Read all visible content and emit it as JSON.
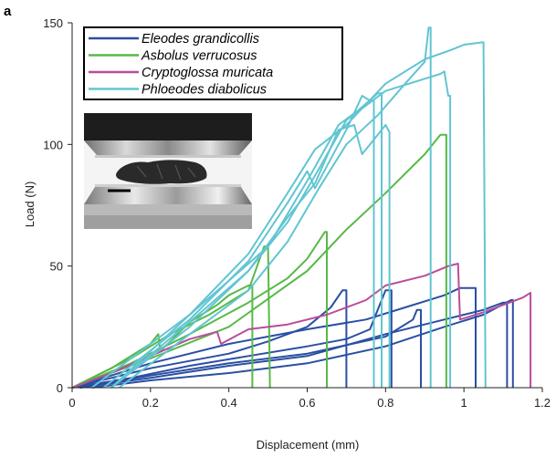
{
  "chart_data": {
    "type": "line",
    "panel_label": "a",
    "xlabel": "Displacement (mm)",
    "ylabel": "Load (N)",
    "xlim": [
      0,
      1.2
    ],
    "ylim": [
      0,
      150
    ],
    "xticks": [
      "0",
      "0.2",
      "0.4",
      "0.6",
      "0.8",
      "1",
      "1.2"
    ],
    "yticks": [
      "0",
      "50",
      "100",
      "150"
    ],
    "legend_position": "top-left",
    "grid": false,
    "inset_image": "beetle specimen compressed between two steel platens",
    "series": [
      {
        "name": "Eleodes grandicollis",
        "color": "#2a4fa3",
        "curves": [
          [
            [
              0,
              0
            ],
            [
              0.1,
              4
            ],
            [
              0.2,
              8
            ],
            [
              0.3,
              11
            ],
            [
              0.4,
              14
            ],
            [
              0.5,
              19
            ],
            [
              0.6,
              25
            ],
            [
              0.66,
              33
            ],
            [
              0.69,
              40
            ],
            [
              0.7,
              40
            ],
            [
              0.7,
              0
            ]
          ],
          [
            [
              0,
              0
            ],
            [
              0.15,
              4
            ],
            [
              0.3,
              9
            ],
            [
              0.45,
              13
            ],
            [
              0.6,
              17
            ],
            [
              0.7,
              20
            ],
            [
              0.76,
              24
            ],
            [
              0.8,
              40
            ],
            [
              0.815,
              40
            ],
            [
              0.815,
              0
            ]
          ],
          [
            [
              0.02,
              0
            ],
            [
              0.2,
              5
            ],
            [
              0.4,
              10
            ],
            [
              0.6,
              14
            ],
            [
              0.8,
              21
            ],
            [
              0.87,
              28
            ],
            [
              0.88,
              32
            ],
            [
              0.89,
              32
            ],
            [
              0.89,
              0
            ]
          ],
          [
            [
              0,
              0
            ],
            [
              0.2,
              10
            ],
            [
              0.4,
              18
            ],
            [
              0.6,
              24
            ],
            [
              0.75,
              28
            ],
            [
              0.85,
              33
            ],
            [
              0.95,
              38
            ],
            [
              0.99,
              41
            ],
            [
              1.03,
              41
            ],
            [
              1.03,
              0
            ]
          ],
          [
            [
              0.02,
              0
            ],
            [
              0.2,
              4
            ],
            [
              0.4,
              9
            ],
            [
              0.6,
              13
            ],
            [
              0.8,
              22
            ],
            [
              0.95,
              28
            ],
            [
              1.05,
              32
            ],
            [
              1.1,
              35
            ],
            [
              1.11,
              35
            ],
            [
              1.11,
              0
            ]
          ],
          [
            [
              0.05,
              0
            ],
            [
              0.2,
              3
            ],
            [
              0.4,
              6
            ],
            [
              0.6,
              10
            ],
            [
              0.8,
              17
            ],
            [
              0.95,
              25
            ],
            [
              1.05,
              30
            ],
            [
              1.12,
              36
            ],
            [
              1.125,
              36
            ],
            [
              1.125,
              0
            ]
          ]
        ]
      },
      {
        "name": "Asbolus verrucosus",
        "color": "#58b948",
        "curves": [
          [
            [
              0,
              0
            ],
            [
              0.1,
              8
            ],
            [
              0.2,
              18
            ],
            [
              0.22,
              22
            ],
            [
              0.225,
              15
            ],
            [
              0.3,
              27
            ],
            [
              0.36,
              33
            ],
            [
              0.37,
              34
            ],
            [
              0.4,
              38
            ],
            [
              0.45,
              42
            ],
            [
              0.46,
              42
            ],
            [
              0.46,
              0
            ]
          ],
          [
            [
              0,
              0
            ],
            [
              0.15,
              12
            ],
            [
              0.25,
              22
            ],
            [
              0.35,
              30
            ],
            [
              0.45,
              40
            ],
            [
              0.49,
              58
            ],
            [
              0.5,
              58
            ],
            [
              0.505,
              0
            ]
          ],
          [
            [
              0,
              0
            ],
            [
              0.15,
              10
            ],
            [
              0.3,
              22
            ],
            [
              0.45,
              35
            ],
            [
              0.55,
              45
            ],
            [
              0.6,
              53
            ],
            [
              0.645,
              64
            ],
            [
              0.65,
              64
            ],
            [
              0.65,
              0
            ]
          ],
          [
            [
              0,
              0
            ],
            [
              0.2,
              12
            ],
            [
              0.4,
              25
            ],
            [
              0.6,
              48
            ],
            [
              0.7,
              65
            ],
            [
              0.8,
              80
            ],
            [
              0.9,
              96
            ],
            [
              0.94,
              104
            ],
            [
              0.955,
              104
            ],
            [
              0.955,
              0
            ]
          ]
        ]
      },
      {
        "name": "Cryptoglossa muricata",
        "color": "#b84d9b",
        "curves": [
          [
            [
              0,
              0
            ],
            [
              0.1,
              6
            ],
            [
              0.2,
              13
            ],
            [
              0.3,
              20
            ],
            [
              0.37,
              23
            ],
            [
              0.38,
              18
            ],
            [
              0.45,
              24
            ],
            [
              0.55,
              26
            ],
            [
              0.65,
              30
            ],
            [
              0.75,
              36
            ],
            [
              0.8,
              42
            ],
            [
              0.9,
              46
            ],
            [
              0.96,
              50
            ],
            [
              0.985,
              51
            ],
            [
              0.99,
              28
            ],
            [
              1.05,
              31
            ],
            [
              1.1,
              34
            ],
            [
              1.15,
              37
            ],
            [
              1.17,
              39
            ],
            [
              1.17,
              0
            ]
          ]
        ]
      },
      {
        "name": "Phloeodes diabolicus",
        "color": "#61c5d2",
        "curves": [
          [
            [
              0.05,
              0
            ],
            [
              0.3,
              30
            ],
            [
              0.5,
              58
            ],
            [
              0.6,
              85
            ],
            [
              0.68,
              108
            ],
            [
              0.73,
              114
            ],
            [
              0.78,
              121
            ],
            [
              0.79,
              121
            ],
            [
              0.79,
              0
            ]
          ],
          [
            [
              0.08,
              0
            ],
            [
              0.3,
              28
            ],
            [
              0.45,
              52
            ],
            [
              0.55,
              76
            ],
            [
              0.6,
              89
            ],
            [
              0.62,
              82
            ],
            [
              0.7,
              106
            ],
            [
              0.74,
              120
            ],
            [
              0.76,
              118
            ],
            [
              0.77,
              118
            ],
            [
              0.77,
              0
            ]
          ],
          [
            [
              0.1,
              0
            ],
            [
              0.3,
              27
            ],
            [
              0.45,
              48
            ],
            [
              0.55,
              70
            ],
            [
              0.62,
              84
            ],
            [
              0.68,
              106
            ],
            [
              0.72,
              108
            ],
            [
              0.74,
              96
            ],
            [
              0.78,
              104
            ],
            [
              0.8,
              108
            ],
            [
              0.81,
              105
            ],
            [
              0.81,
              0
            ]
          ],
          [
            [
              0.12,
              0
            ],
            [
              0.3,
              22
            ],
            [
              0.45,
              40
            ],
            [
              0.55,
              60
            ],
            [
              0.63,
              82
            ],
            [
              0.7,
              100
            ],
            [
              0.78,
              112
            ],
            [
              0.85,
              125
            ],
            [
              0.9,
              134
            ],
            [
              0.91,
              148
            ],
            [
              0.915,
              148
            ],
            [
              0.915,
              0
            ]
          ],
          [
            [
              0.1,
              0
            ],
            [
              0.3,
              25
            ],
            [
              0.45,
              48
            ],
            [
              0.55,
              68
            ],
            [
              0.63,
              90
            ],
            [
              0.7,
              110
            ],
            [
              0.8,
              122
            ],
            [
              0.9,
              127
            ],
            [
              0.94,
              129
            ],
            [
              0.95,
              130
            ],
            [
              0.96,
              120
            ],
            [
              0.965,
              120
            ],
            [
              0.965,
              0
            ]
          ],
          [
            [
              0.1,
              0
            ],
            [
              0.3,
              30
            ],
            [
              0.45,
              55
            ],
            [
              0.55,
              80
            ],
            [
              0.62,
              98
            ],
            [
              0.7,
              108
            ],
            [
              0.8,
              125
            ],
            [
              0.9,
              135
            ],
            [
              0.97,
              139
            ],
            [
              1.0,
              141
            ],
            [
              1.05,
              142
            ],
            [
              1.055,
              0
            ]
          ]
        ]
      }
    ]
  }
}
